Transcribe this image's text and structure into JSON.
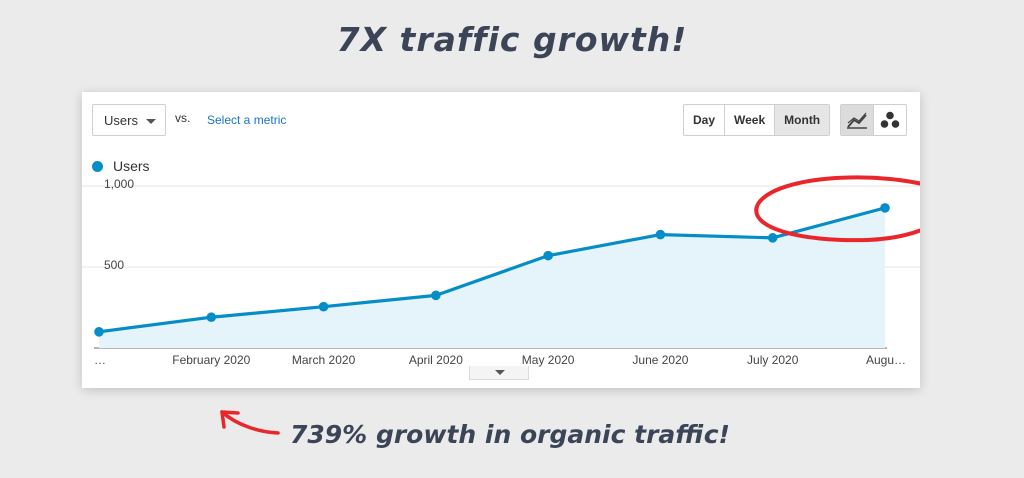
{
  "headline": "7X traffic growth!",
  "caption": "739% growth in organic traffic!",
  "toolbar": {
    "metric": "Users",
    "vs": "vs.",
    "select_metric": "Select a metric",
    "periods": [
      "Day",
      "Week",
      "Month"
    ],
    "active_period": "Month"
  },
  "legend": {
    "label": "Users"
  },
  "colors": {
    "line": "#058dc7",
    "area": "#e5f4fb",
    "annotation": "#e8262c",
    "text": "#3b4557"
  },
  "chart_data": {
    "type": "area",
    "title": "",
    "xlabel": "",
    "ylabel": "",
    "x": [
      "…",
      "February 2020",
      "March 2020",
      "April 2020",
      "May 2020",
      "June 2020",
      "July 2020",
      "Augu…"
    ],
    "series": [
      {
        "name": "Users",
        "values": [
          100,
          190,
          255,
          325,
          570,
          700,
          680,
          865
        ]
      }
    ],
    "ylim": [
      0,
      1000
    ],
    "yticks": [
      {
        "value": 500,
        "label": "500"
      },
      {
        "value": 1000,
        "label": "1,000"
      }
    ],
    "grid": true,
    "legend": "top-left"
  }
}
